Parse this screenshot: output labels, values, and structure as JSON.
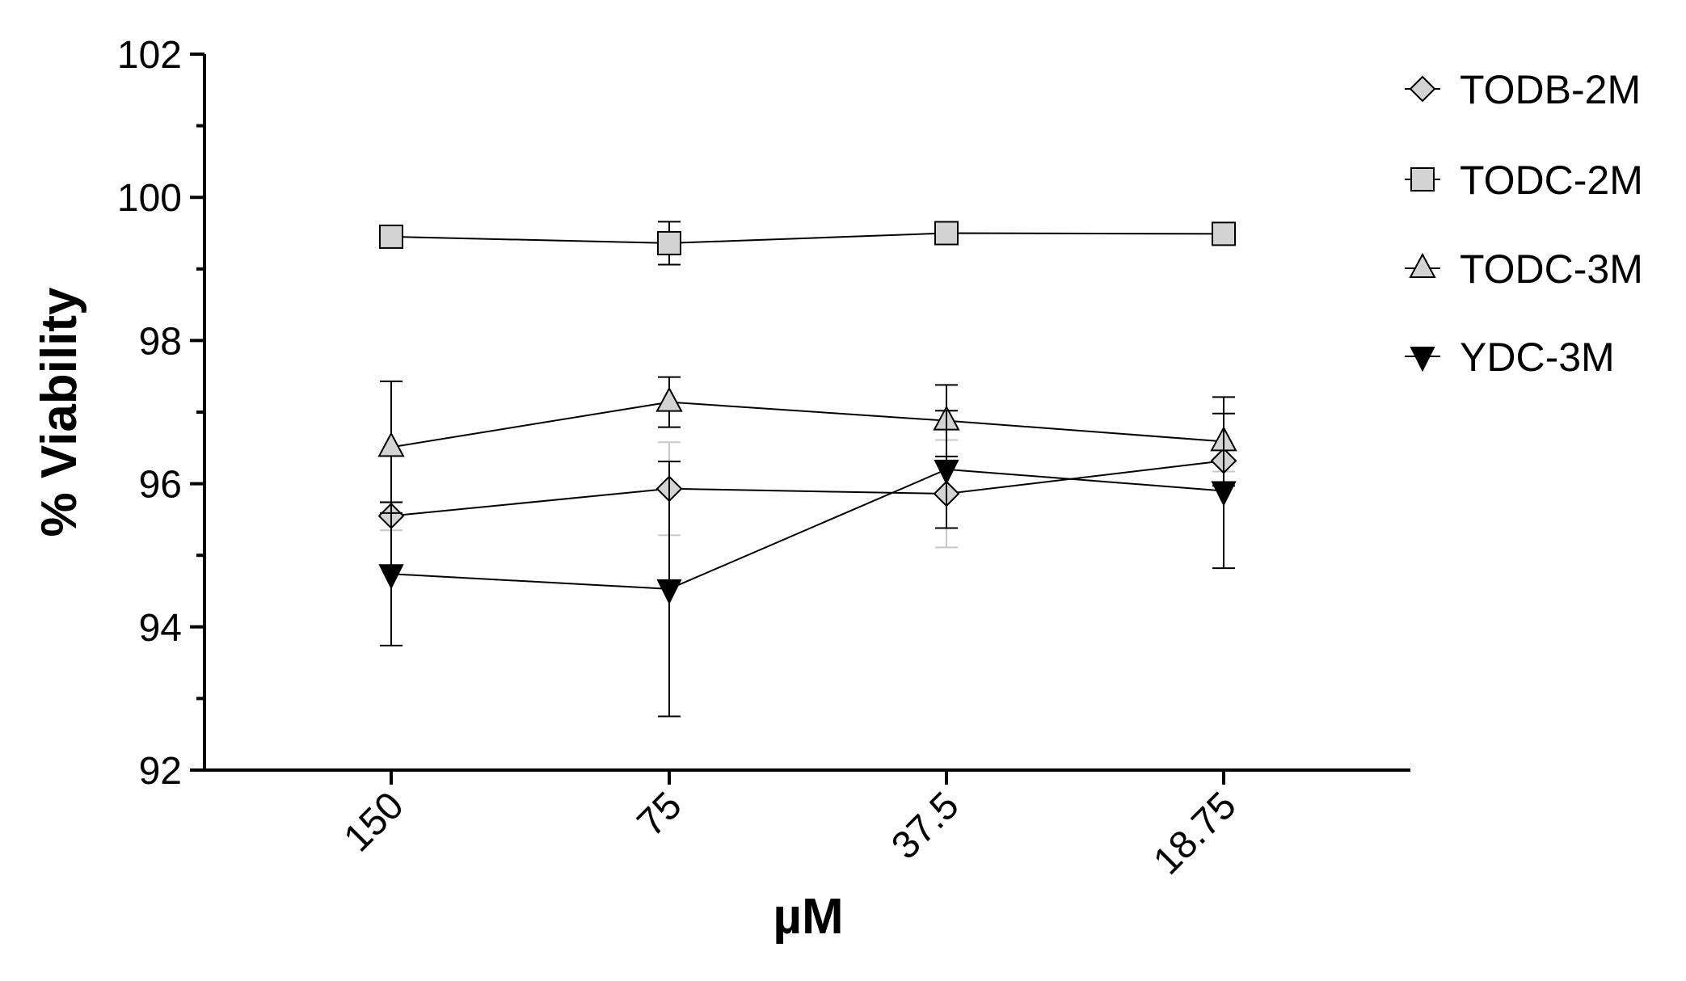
{
  "chart_data": {
    "type": "line",
    "xlabel": "µM",
    "ylabel": "% Viability",
    "categories": [
      "150",
      "75",
      "37.5",
      "18.75"
    ],
    "ylim": [
      92,
      102
    ],
    "yticks": [
      92,
      94,
      96,
      98,
      100,
      102
    ],
    "y_minor_step": 1,
    "grid": false,
    "legend_position": "right",
    "series": [
      {
        "name": "TODB-2M",
        "marker": "diamond",
        "fill": "#d3d3d3",
        "errorbar_color": "#c8c8c8",
        "values": [
          95.55,
          95.93,
          95.86,
          96.32
        ],
        "errors": [
          0.2,
          0.65,
          0.75,
          0.15
        ]
      },
      {
        "name": "TODC-2M",
        "marker": "square",
        "fill": "#d3d3d3",
        "errorbar_color": "#000000",
        "values": [
          99.45,
          99.36,
          99.5,
          99.49
        ],
        "errors": [
          0.0,
          0.3,
          0.0,
          0.0
        ]
      },
      {
        "name": "TODC-3M",
        "marker": "triangle-up",
        "fill": "#d3d3d3",
        "errorbar_color": "#000000",
        "values": [
          96.51,
          97.14,
          96.88,
          96.59
        ],
        "errors": [
          0.92,
          0.35,
          0.5,
          0.62
        ]
      },
      {
        "name": "YDC-3M",
        "marker": "triangle-down",
        "fill": "#000000",
        "errorbar_color": "#000000",
        "values": [
          94.74,
          94.53,
          96.2,
          95.9
        ],
        "errors": [
          1.0,
          1.78,
          0.82,
          1.08
        ]
      }
    ]
  }
}
